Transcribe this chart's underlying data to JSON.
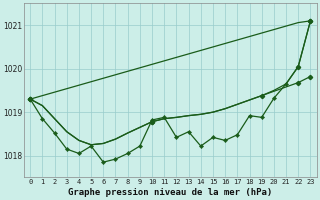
{
  "title": "Graphe pression niveau de la mer (hPa)",
  "background_color": "#cceee8",
  "grid_color": "#99cccc",
  "line_color": "#1a5c1a",
  "x_labels": [
    "0",
    "1",
    "2",
    "3",
    "4",
    "5",
    "6",
    "7",
    "8",
    "9",
    "10",
    "11",
    "12",
    "13",
    "14",
    "15",
    "16",
    "17",
    "18",
    "19",
    "20",
    "21",
    "22",
    "23"
  ],
  "ylim": [
    1017.5,
    1021.5
  ],
  "yticks": [
    1018,
    1019,
    1020,
    1021
  ],
  "smooth_line1": [
    1019.3,
    1019.15,
    1018.85,
    1018.55,
    1018.35,
    1018.25,
    1018.28,
    1018.38,
    1018.52,
    1018.65,
    1018.78,
    1018.85,
    1018.88,
    1018.92,
    1018.95,
    1019.0,
    1019.08,
    1019.18,
    1019.28,
    1019.38,
    1019.48,
    1019.58,
    1019.68,
    1019.82
  ],
  "smooth_line2": [
    1019.3,
    1019.15,
    1018.85,
    1018.55,
    1018.35,
    1018.25,
    1018.28,
    1018.38,
    1018.52,
    1018.65,
    1018.78,
    1018.85,
    1018.88,
    1018.92,
    1018.95,
    1019.0,
    1019.08,
    1019.18,
    1019.28,
    1019.38,
    1019.5,
    1019.65,
    1020.05,
    1021.1
  ],
  "diagonal_line": [
    1019.3,
    1019.38,
    1019.46,
    1019.54,
    1019.62,
    1019.7,
    1019.78,
    1019.86,
    1019.94,
    1020.02,
    1020.1,
    1020.18,
    1020.26,
    1020.34,
    1020.42,
    1020.5,
    1020.58,
    1020.66,
    1020.74,
    1020.82,
    1020.9,
    1020.98,
    1021.06,
    1021.1
  ],
  "jagged_line": [
    1019.3,
    1018.85,
    1018.52,
    1018.15,
    1018.05,
    1018.22,
    1017.85,
    1017.92,
    1018.05,
    1018.22,
    1018.82,
    1018.88,
    1018.42,
    1018.55,
    1018.22,
    1018.42,
    1018.35,
    1018.48,
    1018.92,
    1018.88,
    1019.32,
    1019.65,
    1020.05,
    1021.1
  ],
  "jagged_markers": [
    0,
    1,
    2,
    3,
    4,
    5,
    6,
    7,
    8,
    9,
    10,
    11,
    12,
    13,
    14,
    15,
    16,
    17,
    18,
    19,
    20,
    21,
    22,
    23
  ],
  "smooth1_markers": [
    0,
    10,
    22,
    23
  ],
  "smooth2_markers": [
    0,
    10,
    19,
    22,
    23
  ],
  "diag_markers": [
    0,
    23
  ]
}
